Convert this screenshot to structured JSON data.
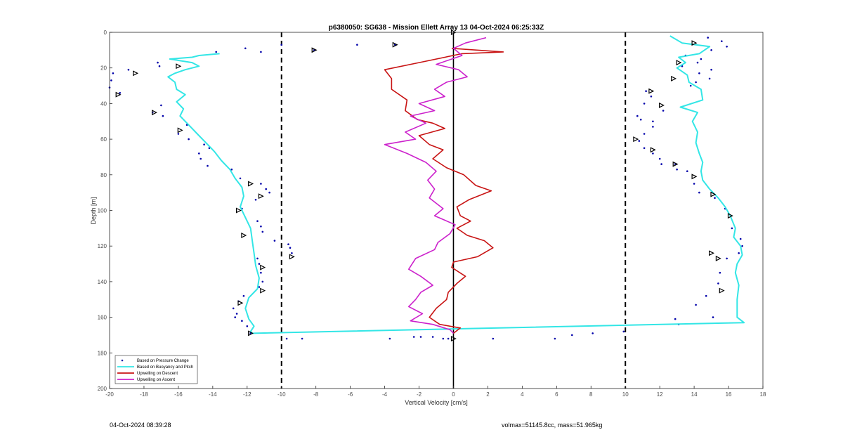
{
  "chart_data": {
    "type": "line",
    "title": "p6380050: SG638 - Mission Ellett Array 13 04-Oct-2024 06:25:33Z",
    "xlabel": "Vertical Velocity [cm/s]",
    "ylabel": "Depth [m]",
    "xlim": [
      -20,
      18
    ],
    "ylim": [
      0,
      200
    ],
    "y_reversed": true,
    "xticks": [
      -20,
      -18,
      -16,
      -14,
      -12,
      -10,
      -8,
      -6,
      -4,
      -2,
      0,
      2,
      4,
      6,
      8,
      10,
      12,
      14,
      16,
      18
    ],
    "yticks": [
      0,
      20,
      40,
      60,
      80,
      100,
      120,
      140,
      160,
      180,
      200
    ],
    "grid": false,
    "legend_position": "bottom-left",
    "reference_lines": [
      {
        "x": -10,
        "style": "dashed",
        "color": "#000000"
      },
      {
        "x": 10,
        "style": "dashed",
        "color": "#000000"
      },
      {
        "x": 0,
        "style": "solid",
        "color": "#000000"
      }
    ],
    "series": [
      {
        "name": "Based on Pressure Change",
        "kind": "scatter",
        "color": "#0000aa",
        "points": [
          [
            -12.1,
            9
          ],
          [
            -11.2,
            11
          ],
          [
            -10,
            7
          ],
          [
            -8.1,
            10
          ],
          [
            -5.6,
            7
          ],
          [
            -3.4,
            7
          ],
          [
            -13.8,
            11
          ],
          [
            -17.2,
            17
          ],
          [
            -17.1,
            19
          ],
          [
            -18.9,
            21
          ],
          [
            -19.8,
            23
          ],
          [
            -19.9,
            27
          ],
          [
            -20,
            31
          ],
          [
            -19.4,
            34
          ],
          [
            -17,
            41
          ],
          [
            -17.5,
            45
          ],
          [
            -16.9,
            47
          ],
          [
            -15.5,
            52
          ],
          [
            -16,
            57
          ],
          [
            -15.4,
            60
          ],
          [
            -14.5,
            63
          ],
          [
            -14.2,
            65
          ],
          [
            -14.8,
            68
          ],
          [
            -14.7,
            71
          ],
          [
            -14.3,
            75
          ],
          [
            -12.9,
            77
          ],
          [
            -12.4,
            82
          ],
          [
            -11.2,
            85
          ],
          [
            -10.9,
            88
          ],
          [
            -10.7,
            90
          ],
          [
            -11.5,
            94
          ],
          [
            -12.3,
            99
          ],
          [
            -11.4,
            106
          ],
          [
            -11.2,
            109
          ],
          [
            -11.1,
            112
          ],
          [
            -10.4,
            117
          ],
          [
            -9.6,
            119
          ],
          [
            -9.5,
            121
          ],
          [
            -9.4,
            124
          ],
          [
            -11.4,
            127
          ],
          [
            -11.3,
            130
          ],
          [
            -11.2,
            135
          ],
          [
            -11.1,
            140
          ],
          [
            -11.3,
            143
          ],
          [
            -12.2,
            148
          ],
          [
            -12.5,
            151
          ],
          [
            -12.8,
            155
          ],
          [
            -12.6,
            158
          ],
          [
            -12.7,
            160
          ],
          [
            -12.3,
            162
          ],
          [
            -12,
            165
          ],
          [
            -11.8,
            169
          ],
          [
            -9.7,
            172
          ],
          [
            -8.8,
            172
          ],
          [
            -3.7,
            172
          ],
          [
            -2.3,
            171
          ],
          [
            -1.9,
            171
          ],
          [
            -1.2,
            171
          ],
          [
            -0.6,
            172
          ],
          [
            -0.3,
            172
          ],
          [
            2.3,
            172
          ],
          [
            5.9,
            172
          ],
          [
            6.9,
            170
          ],
          [
            8.1,
            169
          ],
          [
            9.9,
            168
          ],
          [
            13.1,
            164
          ],
          [
            12.9,
            161
          ],
          [
            15.1,
            160
          ],
          [
            14.1,
            153
          ],
          [
            14.7,
            148
          ],
          [
            15.4,
            141
          ],
          [
            15.5,
            135
          ],
          [
            15.9,
            127
          ],
          [
            16.6,
            124
          ],
          [
            16.8,
            120
          ],
          [
            16.7,
            116
          ],
          [
            16.2,
            110
          ],
          [
            15.8,
            99
          ],
          [
            15.2,
            93
          ],
          [
            14.3,
            90
          ],
          [
            14,
            85
          ],
          [
            13.6,
            78
          ],
          [
            13,
            77
          ],
          [
            12.9,
            74
          ],
          [
            12.1,
            74
          ],
          [
            12,
            71
          ],
          [
            11.6,
            68
          ],
          [
            11.1,
            65
          ],
          [
            10.8,
            61
          ],
          [
            11.1,
            57
          ],
          [
            11.6,
            53
          ],
          [
            11.6,
            50
          ],
          [
            10.9,
            49
          ],
          [
            10.7,
            47
          ],
          [
            12.2,
            44
          ],
          [
            11.1,
            40
          ],
          [
            11.5,
            36
          ],
          [
            11.2,
            33
          ],
          [
            13.8,
            30
          ],
          [
            14.1,
            28
          ],
          [
            14.9,
            26
          ],
          [
            14.3,
            23
          ],
          [
            15,
            21
          ],
          [
            13.3,
            19
          ],
          [
            14.2,
            17
          ],
          [
            14.4,
            15
          ],
          [
            13.5,
            13
          ],
          [
            15,
            10
          ],
          [
            15.9,
            8
          ],
          [
            15.6,
            5
          ],
          [
            14.8,
            3
          ]
        ]
      },
      {
        "name": "Based on Buoyancy and Pitch",
        "kind": "line",
        "color": "#33e6e6",
        "points": [
          [
            -13.6,
            12
          ],
          [
            -14.8,
            13
          ],
          [
            -15.2,
            14
          ],
          [
            -16.5,
            15
          ],
          [
            -15.2,
            17
          ],
          [
            -14.8,
            19
          ],
          [
            -15.6,
            21
          ],
          [
            -16.2,
            23
          ],
          [
            -16.6,
            25
          ],
          [
            -16.2,
            28
          ],
          [
            -16.1,
            32
          ],
          [
            -15.6,
            35
          ],
          [
            -16.1,
            39
          ],
          [
            -15.7,
            43
          ],
          [
            -15.9,
            47
          ],
          [
            -15.4,
            52
          ],
          [
            -14.9,
            57
          ],
          [
            -14.4,
            62
          ],
          [
            -13.9,
            67
          ],
          [
            -13.5,
            72
          ],
          [
            -13,
            77
          ],
          [
            -12.7,
            82
          ],
          [
            -12.3,
            87
          ],
          [
            -12.2,
            92
          ],
          [
            -12.4,
            98
          ],
          [
            -12.1,
            104
          ],
          [
            -11.8,
            110
          ],
          [
            -11.7,
            117
          ],
          [
            -11.6,
            124
          ],
          [
            -11.5,
            131
          ],
          [
            -11.3,
            138
          ],
          [
            -11.4,
            144
          ],
          [
            -11.9,
            149
          ],
          [
            -12.1,
            155
          ],
          [
            -11.9,
            161
          ],
          [
            -11.6,
            165
          ],
          [
            -11.8,
            168
          ],
          [
            -11.7,
            169
          ],
          [
            16.9,
            163
          ],
          [
            16.5,
            160
          ],
          [
            16.5,
            150
          ],
          [
            16.6,
            142
          ],
          [
            16.4,
            135
          ],
          [
            16.5,
            130
          ],
          [
            16.8,
            125
          ],
          [
            16.7,
            120
          ],
          [
            16.3,
            115
          ],
          [
            16.4,
            110
          ],
          [
            16.1,
            103
          ],
          [
            15.8,
            98
          ],
          [
            15.4,
            93
          ],
          [
            14.9,
            88
          ],
          [
            14.5,
            83
          ],
          [
            14.4,
            78
          ],
          [
            14.5,
            73
          ],
          [
            14.3,
            68
          ],
          [
            14.1,
            62
          ],
          [
            14.2,
            56
          ],
          [
            13.9,
            50
          ],
          [
            14.2,
            45
          ],
          [
            13.2,
            42
          ],
          [
            14.5,
            38
          ],
          [
            14.4,
            32
          ],
          [
            13.7,
            28
          ],
          [
            13.6,
            24
          ],
          [
            13,
            20
          ],
          [
            13.5,
            17
          ],
          [
            13.1,
            14
          ],
          [
            14.3,
            12
          ],
          [
            14.9,
            8
          ],
          [
            13.3,
            6
          ],
          [
            12.6,
            2
          ]
        ]
      },
      {
        "name": "Upwelling on Descent",
        "kind": "line",
        "color": "#c81414",
        "points": [
          [
            -0.1,
            9
          ],
          [
            2.9,
            11
          ],
          [
            0.5,
            12
          ],
          [
            -2,
            17
          ],
          [
            -4,
            21
          ],
          [
            -3.6,
            26
          ],
          [
            -3.6,
            32
          ],
          [
            -2.7,
            38
          ],
          [
            -2.8,
            44
          ],
          [
            -2.1,
            49
          ],
          [
            -1.2,
            51
          ],
          [
            -0.5,
            54
          ],
          [
            -2,
            58
          ],
          [
            -1.4,
            63
          ],
          [
            -0.6,
            66
          ],
          [
            -1.2,
            71
          ],
          [
            -0.4,
            76
          ],
          [
            0.6,
            80
          ],
          [
            1.3,
            86
          ],
          [
            2.2,
            89
          ],
          [
            0.9,
            94
          ],
          [
            0.2,
            98
          ],
          [
            0.4,
            103
          ],
          [
            1,
            106
          ],
          [
            0.2,
            110
          ],
          [
            0.8,
            114
          ],
          [
            1.8,
            117
          ],
          [
            2.3,
            121
          ],
          [
            1.4,
            126
          ],
          [
            0,
            129
          ],
          [
            -0.1,
            132
          ],
          [
            0.7,
            137
          ],
          [
            0.2,
            141
          ],
          [
            -0.3,
            146
          ],
          [
            -0.4,
            150
          ],
          [
            -1,
            155
          ],
          [
            -1.4,
            160
          ],
          [
            -0.8,
            164
          ],
          [
            0.4,
            166
          ],
          [
            0,
            169
          ]
        ]
      },
      {
        "name": "Upwelling on Ascent",
        "kind": "line",
        "color": "#cc22cc",
        "points": [
          [
            1.9,
            3
          ],
          [
            0.7,
            6
          ],
          [
            0,
            9
          ],
          [
            0.5,
            13
          ],
          [
            -1,
            18
          ],
          [
            0.3,
            21
          ],
          [
            0.8,
            25
          ],
          [
            -0.4,
            28
          ],
          [
            -1.1,
            32
          ],
          [
            -0.5,
            36
          ],
          [
            -2,
            40
          ],
          [
            -1.1,
            44
          ],
          [
            -2.5,
            47
          ],
          [
            -1.6,
            51
          ],
          [
            -2.8,
            56
          ],
          [
            -2.2,
            60
          ],
          [
            -4,
            63
          ],
          [
            -2.7,
            68
          ],
          [
            -1.6,
            73
          ],
          [
            -1,
            78
          ],
          [
            -1.5,
            83
          ],
          [
            -1.1,
            88
          ],
          [
            -1.4,
            93
          ],
          [
            -0.6,
            99
          ],
          [
            -1.1,
            103
          ],
          [
            0.1,
            108
          ],
          [
            -0.2,
            113
          ],
          [
            -0.9,
            118
          ],
          [
            -1.1,
            122
          ],
          [
            -2.2,
            127
          ],
          [
            -2.6,
            133
          ],
          [
            -1.9,
            137
          ],
          [
            -1.2,
            142
          ],
          [
            -1.9,
            146
          ],
          [
            -2.2,
            150
          ],
          [
            -2.6,
            154
          ],
          [
            -1.8,
            158
          ],
          [
            -2.5,
            162
          ],
          [
            -1.2,
            164
          ],
          [
            -0.2,
            167
          ],
          [
            0,
            169
          ]
        ]
      }
    ],
    "markers": {
      "kind": "triangle",
      "color": "#000000",
      "points": [
        [
          0,
          0
        ],
        [
          -3.4,
          7
        ],
        [
          -8.1,
          10
        ],
        [
          -16,
          19
        ],
        [
          -18.5,
          23
        ],
        [
          -19.5,
          35
        ],
        [
          -17.4,
          45
        ],
        [
          -15.9,
          55
        ],
        [
          -11.8,
          85
        ],
        [
          -11.2,
          92
        ],
        [
          -12.5,
          100
        ],
        [
          -12.2,
          114
        ],
        [
          -9.4,
          126
        ],
        [
          -11.1,
          132
        ],
        [
          -11.1,
          145
        ],
        [
          -12.4,
          152
        ],
        [
          -11.8,
          169
        ],
        [
          0,
          172
        ],
        [
          14,
          6
        ],
        [
          13.1,
          17
        ],
        [
          12.8,
          26
        ],
        [
          11.5,
          33
        ],
        [
          12.1,
          41
        ],
        [
          10.6,
          60
        ],
        [
          11.6,
          66
        ],
        [
          12.9,
          74
        ],
        [
          14,
          81
        ],
        [
          15.1,
          91
        ],
        [
          16.1,
          103
        ],
        [
          15,
          124
        ],
        [
          15.4,
          127
        ],
        [
          15.6,
          145
        ]
      ]
    }
  },
  "legend": {
    "items": [
      {
        "label": "Based on Pressure Change",
        "kind": "dot",
        "color": "#0000aa"
      },
      {
        "label": "Based on Buoyancy and Pitch",
        "kind": "line",
        "color": "#33e6e6"
      },
      {
        "label": "Upwelling on Descent",
        "kind": "line",
        "color": "#c81414"
      },
      {
        "label": "Upwelling on Ascent",
        "kind": "line",
        "color": "#cc22cc"
      }
    ]
  },
  "footer": {
    "timestamp": "04-Oct-2024 08:39:28",
    "stats": "volmax=51145.8cc, mass=51.965kg"
  }
}
